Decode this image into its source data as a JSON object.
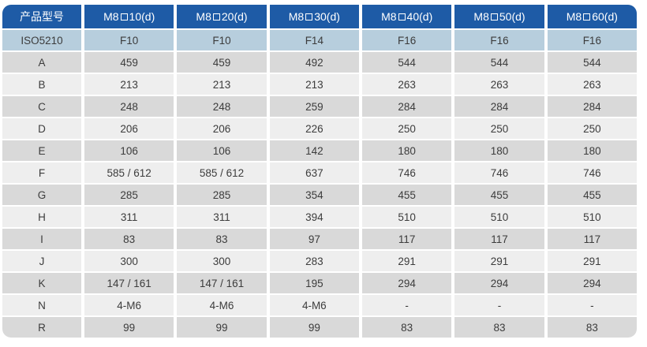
{
  "table": {
    "header": [
      "产品型号",
      "M8□10(d)",
      "M8□20(d)",
      "M8□30(d)",
      "M8□40(d)",
      "M8□50(d)",
      "M8□60(d)"
    ],
    "rows": [
      {
        "label": "ISO5210",
        "values": [
          "F10",
          "F10",
          "F14",
          "F16",
          "F16",
          "F16"
        ],
        "kind": "iso"
      },
      {
        "label": "A",
        "values": [
          "459",
          "459",
          "492",
          "544",
          "544",
          "544"
        ],
        "kind": "dark"
      },
      {
        "label": "B",
        "values": [
          "213",
          "213",
          "213",
          "263",
          "263",
          "263"
        ],
        "kind": "light"
      },
      {
        "label": "C",
        "values": [
          "248",
          "248",
          "259",
          "284",
          "284",
          "284"
        ],
        "kind": "dark"
      },
      {
        "label": "D",
        "values": [
          "206",
          "206",
          "226",
          "250",
          "250",
          "250"
        ],
        "kind": "light"
      },
      {
        "label": "E",
        "values": [
          "106",
          "106",
          "142",
          "180",
          "180",
          "180"
        ],
        "kind": "dark"
      },
      {
        "label": "F",
        "values": [
          "585 / 612",
          "585 / 612",
          "637",
          "746",
          "746",
          "746"
        ],
        "kind": "light"
      },
      {
        "label": "G",
        "values": [
          "285",
          "285",
          "354",
          "455",
          "455",
          "455"
        ],
        "kind": "dark"
      },
      {
        "label": "H",
        "values": [
          "311",
          "311",
          "394",
          "510",
          "510",
          "510"
        ],
        "kind": "light"
      },
      {
        "label": "I",
        "values": [
          "83",
          "83",
          "97",
          "117",
          "117",
          "117"
        ],
        "kind": "dark"
      },
      {
        "label": "J",
        "values": [
          "300",
          "300",
          "283",
          "291",
          "291",
          "291"
        ],
        "kind": "light"
      },
      {
        "label": "K",
        "values": [
          "147 / 161",
          "147 / 161",
          "195",
          "294",
          "294",
          "294"
        ],
        "kind": "dark"
      },
      {
        "label": "N",
        "values": [
          "4-M6",
          "4-M6",
          "4-M6",
          "-",
          "-",
          "-"
        ],
        "kind": "light"
      },
      {
        "label": "R",
        "values": [
          "99",
          "99",
          "99",
          "83",
          "83",
          "83"
        ],
        "kind": "dark"
      }
    ],
    "colors": {
      "header_bg": "#1e5ba6",
      "header_text": "#ffffff",
      "iso_bg": "#b7cedd",
      "row_dark": "#d9d9d9",
      "row_light": "#eeeeee",
      "text": "#3c3c3c"
    }
  }
}
